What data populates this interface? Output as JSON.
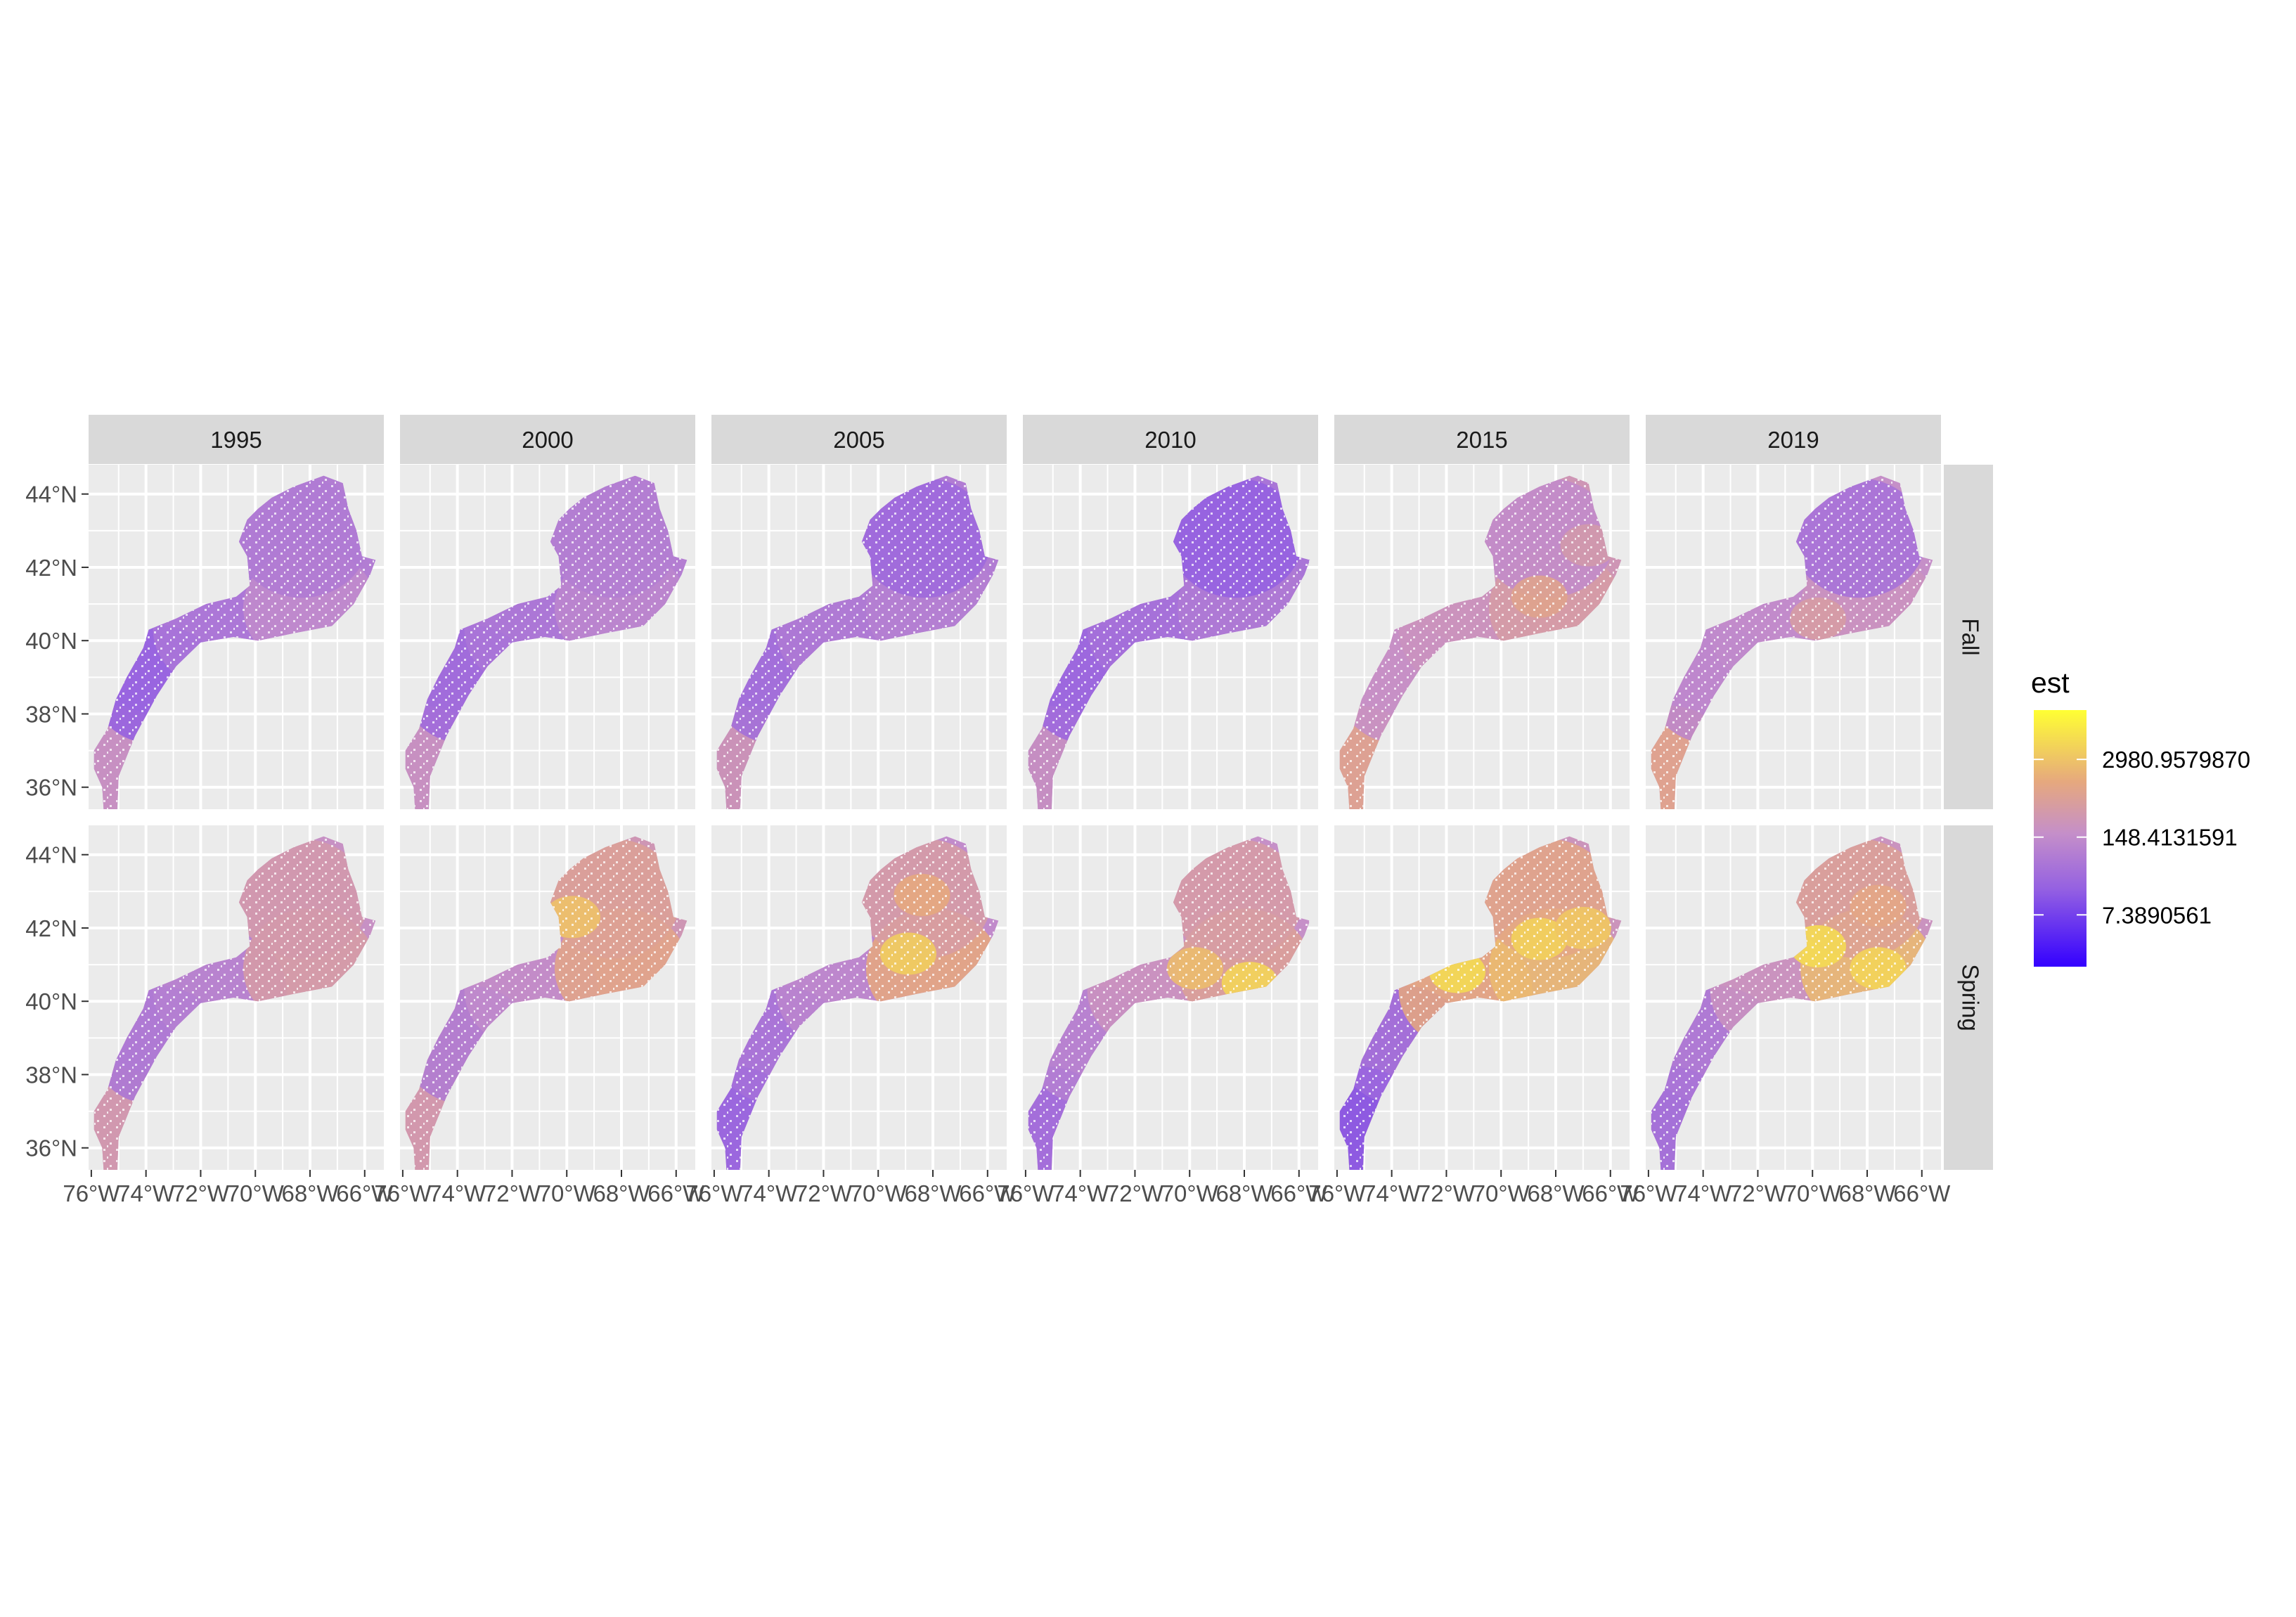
{
  "chart_data": {
    "type": "heatmap",
    "facet_columns": [
      "1995",
      "2000",
      "2005",
      "2010",
      "2015",
      "2019"
    ],
    "facet_rows": [
      "Fall",
      "Spring"
    ],
    "x_axis": {
      "ticks": [
        -76,
        -74,
        -72,
        -70,
        -68,
        -66
      ],
      "tick_labels": [
        "76°W",
        "74°W",
        "72°W",
        "70°W",
        "68°W",
        "66°W"
      ],
      "range": [
        -76.1,
        -65.3
      ]
    },
    "y_axis": {
      "ticks": [
        36,
        38,
        40,
        42,
        44
      ],
      "tick_labels": [
        "36°N",
        "38°N",
        "40°N",
        "42°N",
        "44°N"
      ],
      "range": [
        35.4,
        44.8
      ]
    },
    "grid": true,
    "legend": {
      "title": "est",
      "position": "right",
      "scale": "log",
      "breaks": [
        7.3890561,
        148.4131591,
        2980.957987
      ],
      "break_labels": [
        "2980.9579870",
        "148.4131591",
        "7.3890561"
      ],
      "range": [
        1,
        20000
      ],
      "colors": {
        "low": "#3300ff",
        "mid": "#b47fd6",
        "high_mid": "#e6a87e",
        "high": "#ffff33"
      }
    },
    "panels": {
      "Fall": {
        "1995": {
          "shelf": 0.3,
          "slope": 0.4,
          "gom": 0.42,
          "gbank": 0.5,
          "south": 0.55,
          "hot": []
        },
        "2000": {
          "shelf": 0.34,
          "slope": 0.4,
          "gom": 0.44,
          "gbank": 0.48,
          "south": 0.55,
          "hot": []
        },
        "2005": {
          "shelf": 0.36,
          "slope": 0.42,
          "gom": 0.34,
          "gbank": 0.45,
          "south": 0.58,
          "hot": []
        },
        "2010": {
          "shelf": 0.33,
          "slope": 0.38,
          "gom": 0.3,
          "gbank": 0.42,
          "south": 0.55,
          "hot": []
        },
        "2015": {
          "shelf": 0.52,
          "slope": 0.55,
          "gom": 0.5,
          "gbank": 0.62,
          "south": 0.68,
          "hot": [
            [
              -68.6,
              41.2,
              0.68
            ],
            [
              -66.8,
              42.6,
              0.6
            ]
          ]
        },
        "2019": {
          "shelf": 0.48,
          "slope": 0.5,
          "gom": 0.38,
          "gbank": 0.55,
          "south": 0.7,
          "hot": [
            [
              -69.8,
              40.6,
              0.62
            ]
          ]
        }
      },
      "Spring": {
        "1995": {
          "shelf": 0.4,
          "slope": 0.45,
          "gom": 0.6,
          "gbank": 0.62,
          "south": 0.6,
          "hot": []
        },
        "2000": {
          "shelf": 0.42,
          "slope": 0.5,
          "gom": 0.66,
          "gbank": 0.7,
          "south": 0.6,
          "hot": [
            [
              -69.8,
              42.3,
              0.8
            ]
          ]
        },
        "2005": {
          "shelf": 0.38,
          "slope": 0.48,
          "gom": 0.62,
          "gbank": 0.72,
          "south": 0.3,
          "hot": [
            [
              -68.9,
              41.3,
              0.84
            ],
            [
              -68.4,
              42.9,
              0.72
            ]
          ]
        },
        "2010": {
          "shelf": 0.45,
          "slope": 0.55,
          "gom": 0.62,
          "gbank": 0.66,
          "south": 0.34,
          "hot": [
            [
              -67.8,
              40.5,
              0.86
            ],
            [
              -69.8,
              40.9,
              0.78
            ]
          ]
        },
        "2015": {
          "shelf": 0.34,
          "slope": 0.72,
          "gom": 0.7,
          "gbank": 0.78,
          "south": 0.25,
          "hot": [
            [
              -71.6,
              40.8,
              0.88
            ],
            [
              -68.6,
              41.7,
              0.85
            ],
            [
              -67.0,
              42.0,
              0.82
            ]
          ]
        },
        "2019": {
          "shelf": 0.4,
          "slope": 0.55,
          "gom": 0.66,
          "gbank": 0.78,
          "south": 0.35,
          "hot": [
            [
              -69.8,
              41.5,
              0.88
            ],
            [
              -67.6,
              40.9,
              0.86
            ],
            [
              -67.6,
              42.6,
              0.7
            ]
          ]
        }
      }
    }
  }
}
